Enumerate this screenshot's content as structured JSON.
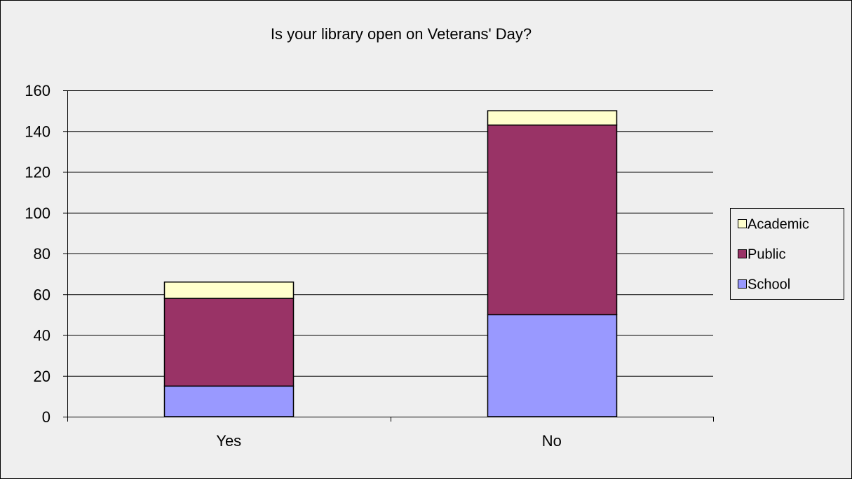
{
  "chart_data": {
    "type": "bar",
    "stacked": true,
    "title": "Is your library open on Veterans' Day?",
    "xlabel": "",
    "ylabel": "",
    "categories": [
      "Yes",
      "No"
    ],
    "series": [
      {
        "name": "School",
        "values": [
          15,
          50
        ],
        "color": "#9999ff"
      },
      {
        "name": "Public",
        "values": [
          43,
          93
        ],
        "color": "#993366"
      },
      {
        "name": "Academic",
        "values": [
          8,
          7
        ],
        "color": "#ffffcc"
      }
    ],
    "ylim": [
      0,
      160
    ],
    "yticks": [
      0,
      20,
      40,
      60,
      80,
      100,
      120,
      140,
      160
    ],
    "grid": true,
    "legend_position": "right",
    "legend_order": [
      "Academic",
      "Public",
      "School"
    ],
    "background_color": "#efefef",
    "plot_background_color": "#efefef"
  }
}
